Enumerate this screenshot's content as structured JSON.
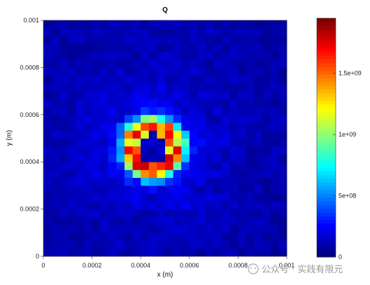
{
  "chart_data": {
    "type": "heatmap",
    "title": "Q",
    "xlabel": "x (m)",
    "ylabel": "y (m)",
    "xlim": [
      0,
      0.001
    ],
    "ylim": [
      0,
      0.001
    ],
    "x_ticks": [
      "0",
      "0.0002",
      "0.0004",
      "0.0006",
      "0.0008",
      "0.001"
    ],
    "y_ticks": [
      "0",
      "0.0002",
      "0.0004",
      "0.0006",
      "0.0008",
      "0.001"
    ],
    "grid_size": [
      30,
      30
    ],
    "color_range": [
      0,
      1950000000
    ],
    "colorbar_ticks": [
      "0",
      "5e+08",
      "1e+09",
      "1.5e+09"
    ],
    "colormap": "jet",
    "hotspot_center": [
      0.00045,
      0.00046
    ],
    "hotspot_peak": 1950000000,
    "hotspot_inner_radius": 6e-05,
    "hotspot_ring_radius": 9e-05
  },
  "watermark": {
    "text": "公众号 · 实践有限元"
  }
}
